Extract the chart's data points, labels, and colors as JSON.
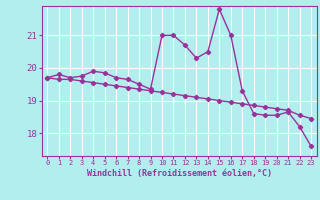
{
  "hours": [
    0,
    1,
    2,
    3,
    4,
    5,
    6,
    7,
    8,
    9,
    10,
    11,
    12,
    13,
    14,
    15,
    16,
    17,
    18,
    19,
    20,
    21,
    22,
    23
  ],
  "series1": [
    19.7,
    19.8,
    19.7,
    19.75,
    19.9,
    19.85,
    19.7,
    19.65,
    19.5,
    19.35,
    21.0,
    21.0,
    20.7,
    20.3,
    20.5,
    21.8,
    21.0,
    19.3,
    18.6,
    18.55,
    18.55,
    18.65,
    18.2,
    17.6
  ],
  "series2": [
    19.7,
    19.65,
    19.65,
    19.6,
    19.55,
    19.5,
    19.45,
    19.4,
    19.35,
    19.3,
    19.25,
    19.2,
    19.15,
    19.1,
    19.05,
    19.0,
    18.95,
    18.9,
    18.85,
    18.8,
    18.75,
    18.7,
    18.55,
    18.45
  ],
  "line_color": "#993399",
  "bg_color": "#b2eeee",
  "grid_color": "#ffffff",
  "tick_color": "#993399",
  "label_color": "#993399",
  "xlabel": "Windchill (Refroidissement éolien,°C)",
  "yticks": [
    18,
    19,
    20,
    21
  ],
  "ylim": [
    17.3,
    21.9
  ],
  "xlim": [
    -0.5,
    23.5
  ],
  "marker": "D",
  "markersize": 2.2,
  "linewidth": 1.0
}
